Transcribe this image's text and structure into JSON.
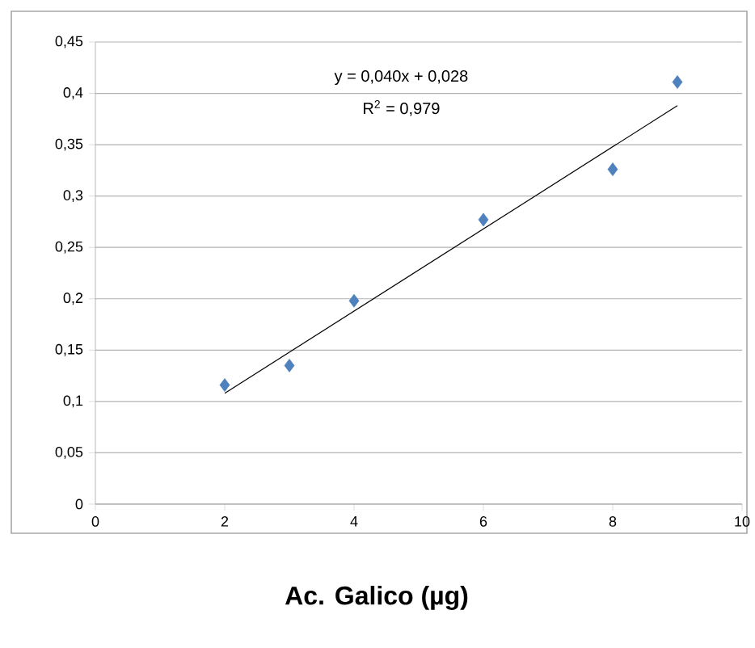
{
  "chart_data": {
    "type": "scatter",
    "xlabel": "Ac. Galico (µg)",
    "annotations": [
      "y = 0,040x + 0,028",
      "R$^{2}$ = 0,979"
    ],
    "xlim": [
      0,
      10
    ],
    "xticks": [
      0,
      2,
      4,
      6,
      8,
      10
    ],
    "ylim": [
      0,
      0.45
    ],
    "yticks": [
      {
        "value": 0,
        "label": "0"
      },
      {
        "value": 0.05,
        "label": "0,05"
      },
      {
        "value": 0.1,
        "label": "0,1"
      },
      {
        "value": 0.15,
        "label": "0,15"
      },
      {
        "value": 0.2,
        "label": "0,2"
      },
      {
        "value": 0.25,
        "label": "0,25"
      },
      {
        "value": 0.3,
        "label": "0,3"
      },
      {
        "value": 0.35,
        "label": "0,35"
      },
      {
        "value": 0.4,
        "label": "0,4"
      },
      {
        "value": 0.45,
        "label": "0,45"
      }
    ],
    "grid": "y",
    "series": [
      {
        "marker": "diamond",
        "color": "#4f81bd",
        "x": [
          2,
          3,
          4,
          6,
          8,
          9
        ],
        "values": [
          0.116,
          0.135,
          0.198,
          0.277,
          0.326,
          0.411
        ]
      },
      {
        "type": "line",
        "marker": "none",
        "line_style": "solid",
        "color": "#000000",
        "x": [
          2,
          9
        ],
        "values": [
          0.108,
          0.388
        ]
      }
    ]
  }
}
